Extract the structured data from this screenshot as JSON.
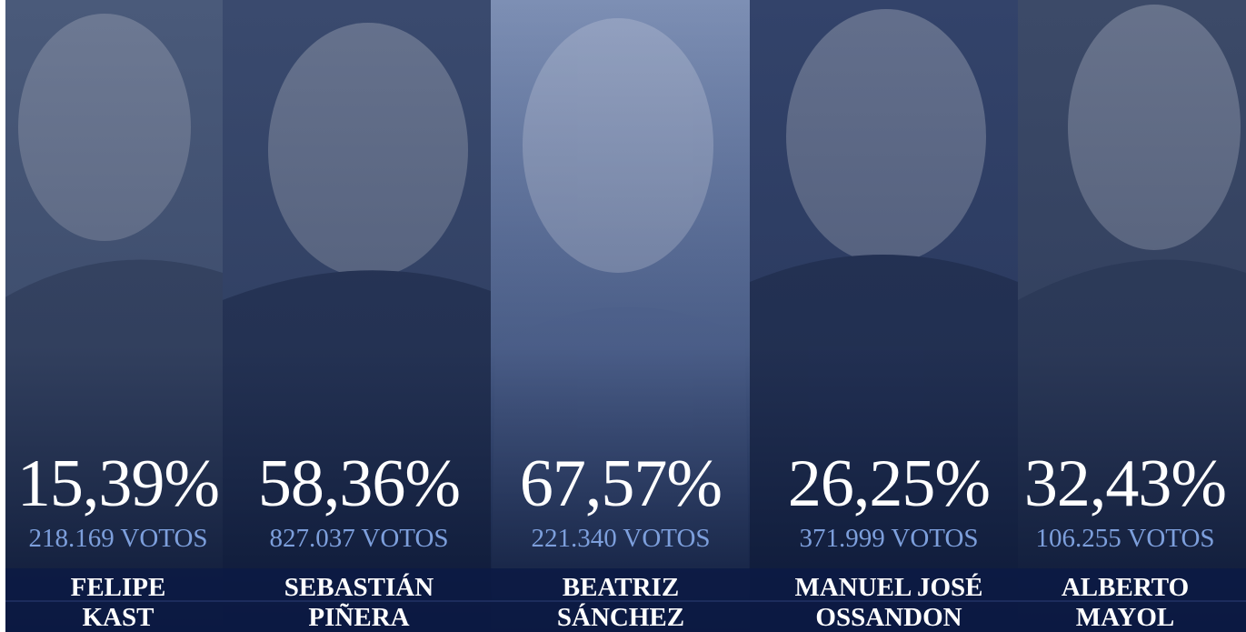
{
  "candidates": [
    {
      "percent": "15,39%",
      "votes": "218.169 VOTOS",
      "first_name": "FELIPE",
      "last_name": "KAST"
    },
    {
      "percent": "58,36%",
      "votes": "827.037 VOTOS",
      "first_name": "SEBASTIÁN",
      "last_name": "PIÑERA"
    },
    {
      "percent": "67,57%",
      "votes": "221.340 VOTOS",
      "first_name": "BEATRIZ",
      "last_name": "SÁNCHEZ"
    },
    {
      "percent": "26,25%",
      "votes": "371.999 VOTOS",
      "first_name": "MANUEL JOSÉ",
      "last_name": "OSSANDON"
    },
    {
      "percent": "32,43%",
      "votes": "106.255 VOTOS",
      "first_name": "ALBERTO",
      "last_name": "MAYOL"
    }
  ]
}
